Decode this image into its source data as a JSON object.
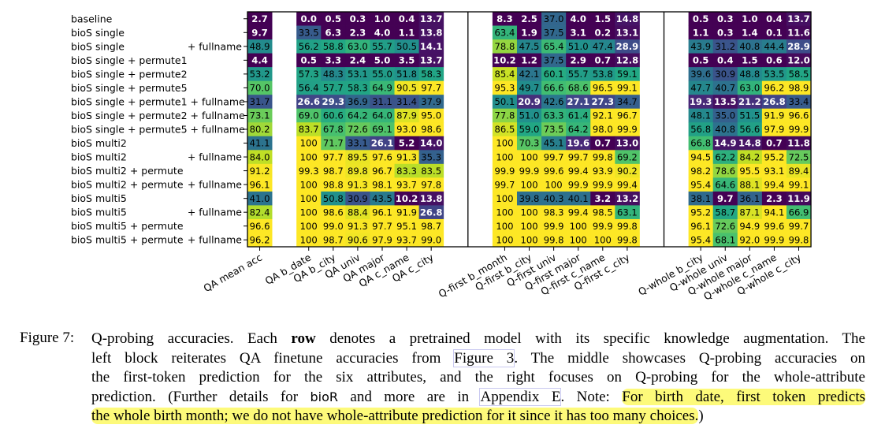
{
  "chart_data": {
    "type": "heatmap",
    "colormap": "viridis",
    "value_range": [
      0,
      100
    ],
    "row_labels": [
      [
        "baseline",
        ""
      ],
      [
        "bioS single",
        ""
      ],
      [
        "bioS single",
        "+ fullname"
      ],
      [
        "bioS single + permute1",
        ""
      ],
      [
        "bioS single + permute2",
        ""
      ],
      [
        "bioS single + permute5",
        ""
      ],
      [
        "bioS single + permute1 + fullname",
        ""
      ],
      [
        "bioS single + permute2 + fullname",
        ""
      ],
      [
        "bioS single + permute5 + fullname",
        ""
      ],
      [
        "bioS multi2",
        ""
      ],
      [
        "bioS multi2",
        "+ fullname"
      ],
      [
        "bioS multi2 + permute",
        ""
      ],
      [
        "bioS multi2 + permute",
        "+ fullname"
      ],
      [
        "bioS multi5",
        ""
      ],
      [
        "bioS multi5",
        "+ fullname"
      ],
      [
        "bioS multi5 + permute",
        ""
      ],
      [
        "bioS multi5 + permute",
        "+ fullname"
      ]
    ],
    "blocks": [
      {
        "name": "qa-mean",
        "columns": [
          "QA mean acc"
        ],
        "values": [
          [
            2.7
          ],
          [
            9.7
          ],
          [
            48.9
          ],
          [
            4.4
          ],
          [
            53.2
          ],
          [
            70.0
          ],
          [
            31.7
          ],
          [
            73.1
          ],
          [
            80.2
          ],
          [
            41.1
          ],
          [
            84.0
          ],
          [
            91.2
          ],
          [
            96.1
          ],
          [
            41.0
          ],
          [
            82.4
          ],
          [
            96.6
          ],
          [
            96.2
          ]
        ]
      },
      {
        "name": "qa",
        "columns": [
          "QA b_date",
          "QA b_city",
          "QA univ",
          "QA major",
          "QA c_name",
          "QA c_city"
        ],
        "values": [
          [
            0.0,
            0.5,
            0.3,
            1.0,
            0.4,
            13.7
          ],
          [
            33.5,
            6.3,
            2.3,
            4.0,
            1.1,
            13.8
          ],
          [
            56.2,
            58.8,
            63.0,
            55.7,
            50.5,
            14.1
          ],
          [
            0.5,
            3.3,
            2.4,
            5.0,
            3.5,
            13.7
          ],
          [
            57.3,
            48.3,
            53.1,
            55.0,
            51.8,
            58.3
          ],
          [
            56.4,
            57.7,
            58.3,
            64.9,
            90.5,
            97.7
          ],
          [
            26.6,
            29.3,
            36.9,
            31.1,
            31.4,
            37.9
          ],
          [
            69.0,
            60.6,
            64.2,
            64.0,
            87.9,
            95.0
          ],
          [
            83.7,
            67.8,
            72.6,
            69.1,
            93.0,
            98.6
          ],
          [
            100,
            71.7,
            33.1,
            26.1,
            5.2,
            14.0
          ],
          [
            100,
            97.7,
            89.5,
            97.6,
            91.3,
            35.3
          ],
          [
            99.3,
            98.7,
            89.8,
            96.7,
            83.3,
            83.5
          ],
          [
            100,
            98.8,
            91.3,
            98.1,
            93.7,
            97.8
          ],
          [
            100,
            50.8,
            30.9,
            43.5,
            10.2,
            13.8
          ],
          [
            100,
            98.6,
            88.4,
            96.1,
            91.9,
            26.8
          ],
          [
            100,
            99.0,
            91.3,
            97.7,
            95.1,
            98.7
          ],
          [
            100,
            98.7,
            90.6,
            97.9,
            93.7,
            99.0
          ]
        ]
      },
      {
        "name": "q-first",
        "columns": [
          "Q-first b_month",
          "Q-first b_city",
          "Q-first univ",
          "Q-first major",
          "Q-first c_name",
          "Q-first c_city"
        ],
        "values": [
          [
            8.3,
            2.5,
            37.0,
            4.0,
            1.5,
            14.8
          ],
          [
            63.4,
            1.9,
            37.5,
            3.1,
            0.2,
            13.1
          ],
          [
            78.8,
            47.5,
            65.4,
            51.0,
            47.4,
            28.9
          ],
          [
            10.2,
            1.2,
            37.5,
            2.9,
            0.7,
            12.8
          ],
          [
            85.4,
            42.1,
            60.1,
            55.7,
            53.8,
            59.1
          ],
          [
            95.3,
            49.7,
            66.6,
            68.6,
            96.5,
            99.1
          ],
          [
            50.1,
            20.9,
            42.6,
            27.1,
            27.3,
            34.7
          ],
          [
            77.8,
            51.0,
            63.3,
            61.4,
            92.1,
            96.7
          ],
          [
            86.5,
            59.0,
            73.5,
            64.2,
            98.0,
            99.9
          ],
          [
            100,
            70.3,
            45.1,
            19.6,
            0.7,
            13.0
          ],
          [
            100,
            100,
            99.7,
            99.7,
            99.8,
            69.2
          ],
          [
            99.9,
            99.9,
            99.6,
            99.4,
            93.9,
            90.2
          ],
          [
            99.7,
            100,
            100,
            99.9,
            99.9,
            99.4
          ],
          [
            100,
            39.8,
            40.3,
            40.1,
            3.2,
            13.2
          ],
          [
            100,
            100,
            98.3,
            99.4,
            98.5,
            63.1
          ],
          [
            100,
            100,
            99.9,
            100,
            99.9,
            99.8
          ],
          [
            100,
            100,
            99.8,
            100,
            100,
            99.8
          ]
        ]
      },
      {
        "name": "q-whole",
        "columns": [
          "Q-whole b_city",
          "Q-whole univ",
          "Q-whole major",
          "Q-whole c_name",
          "Q-whole c_city"
        ],
        "values": [
          [
            0.5,
            0.3,
            1.0,
            0.4,
            13.7
          ],
          [
            1.1,
            0.3,
            1.4,
            0.1,
            11.6
          ],
          [
            43.9,
            31.2,
            40.8,
            44.4,
            28.9
          ],
          [
            0.5,
            0.4,
            1.5,
            0.6,
            12.0
          ],
          [
            39.6,
            30.9,
            48.8,
            53.5,
            58.5
          ],
          [
            47.7,
            40.7,
            63.0,
            96.2,
            98.9
          ],
          [
            19.3,
            13.5,
            21.2,
            26.8,
            33.4
          ],
          [
            48.1,
            35.0,
            51.5,
            91.9,
            96.6
          ],
          [
            56.8,
            40.8,
            56.6,
            97.9,
            99.9
          ],
          [
            66.8,
            14.9,
            14.8,
            0.7,
            11.8
          ],
          [
            94.5,
            62.2,
            84.2,
            95.2,
            72.5
          ],
          [
            98.2,
            78.6,
            95.5,
            93.1,
            89.4
          ],
          [
            95.4,
            64.6,
            88.1,
            99.4,
            99.1
          ],
          [
            38.1,
            9.7,
            36.1,
            2.3,
            11.9
          ],
          [
            95.2,
            58.7,
            87.1,
            94.1,
            66.9
          ],
          [
            96.1,
            72.6,
            94.9,
            99.6,
            99.7
          ],
          [
            95.4,
            68.1,
            92.0,
            99.9,
            99.8
          ]
        ]
      }
    ]
  },
  "caption": {
    "label": "Figure 7:",
    "lines": [
      [
        {
          "t": "Q-probing accuracies. Each "
        },
        {
          "t": "row",
          "s": "bold"
        },
        {
          "t": " denotes a pretrained model with its specific knowledge augmentation. The"
        }
      ],
      [
        {
          "t": "left block reiterates QA finetune accuracies from "
        },
        {
          "t": "Figure 3",
          "s": "link"
        },
        {
          "t": ". The middle showcases Q-probing accuracies on"
        }
      ],
      [
        {
          "t": "the first-token prediction for the six attributes, and the right focuses on Q-probing for the whole-attribute"
        }
      ],
      [
        {
          "t": "prediction. (Further details for "
        },
        {
          "t": "bioR",
          "s": "sans"
        },
        {
          "t": " and more are in "
        },
        {
          "t": "Appendix E",
          "s": "link"
        },
        {
          "t": ". Note: "
        },
        {
          "t": "For birth date, first token predicts",
          "s": "hl"
        }
      ],
      [
        {
          "t": "the whole birth month; we do not have whole-attribute prediction for it since it has too many choices.",
          "s": "hl"
        },
        {
          "t": ")"
        }
      ]
    ]
  }
}
